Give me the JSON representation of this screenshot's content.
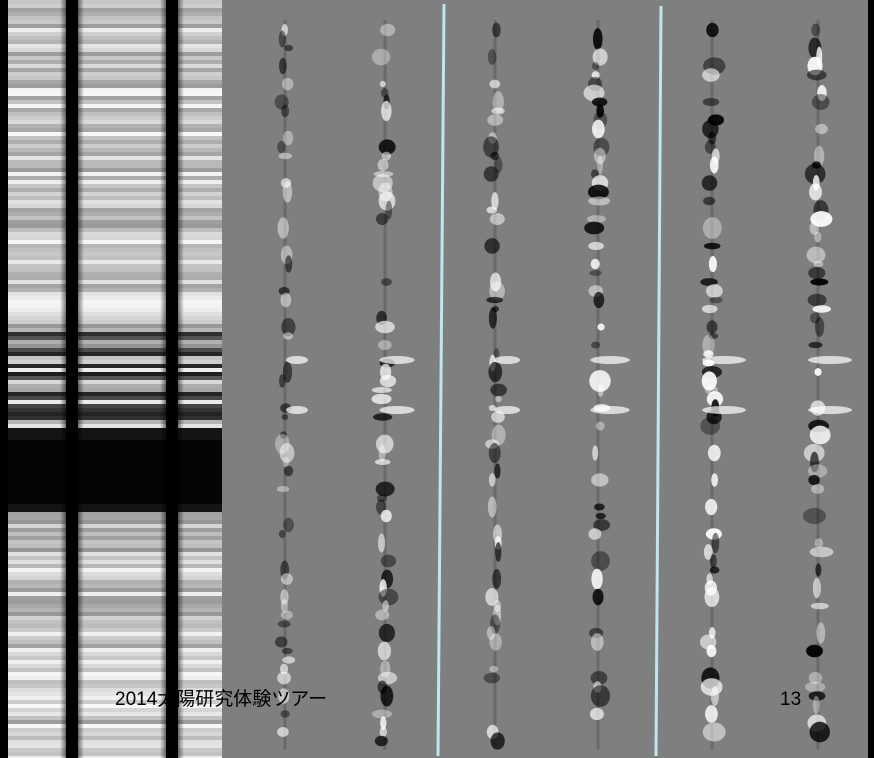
{
  "footer": {
    "title": "2014太陽研究体験ツアー",
    "page_number": "13"
  }
}
